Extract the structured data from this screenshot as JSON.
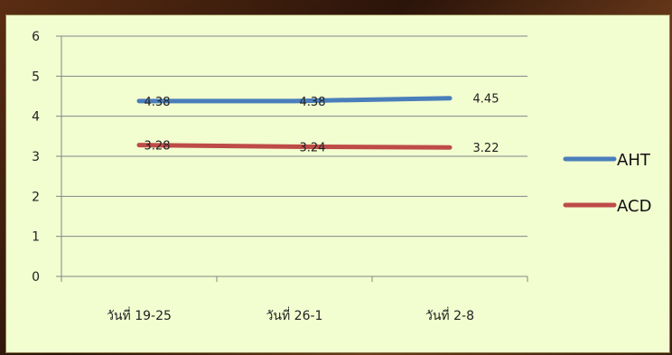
{
  "chart_data": {
    "type": "line",
    "categories": [
      "วันที่ 19-25",
      "วันที่ 26-1",
      "วันที่ 2-8"
    ],
    "series": [
      {
        "name": "AHT",
        "values": [
          4.38,
          4.38,
          4.45
        ],
        "labels": [
          "4.38",
          "4.38",
          "4.45"
        ],
        "color": "#4a7ebb"
      },
      {
        "name": "ACD",
        "values": [
          3.28,
          3.24,
          3.22
        ],
        "labels": [
          "3.28",
          "3.24",
          "3.22"
        ],
        "color": "#be4b48"
      }
    ],
    "y_ticks": [
      "0",
      "1",
      "2",
      "3",
      "4",
      "5",
      "6"
    ],
    "ylim": [
      0,
      6
    ],
    "grid": true,
    "legend": "right"
  }
}
